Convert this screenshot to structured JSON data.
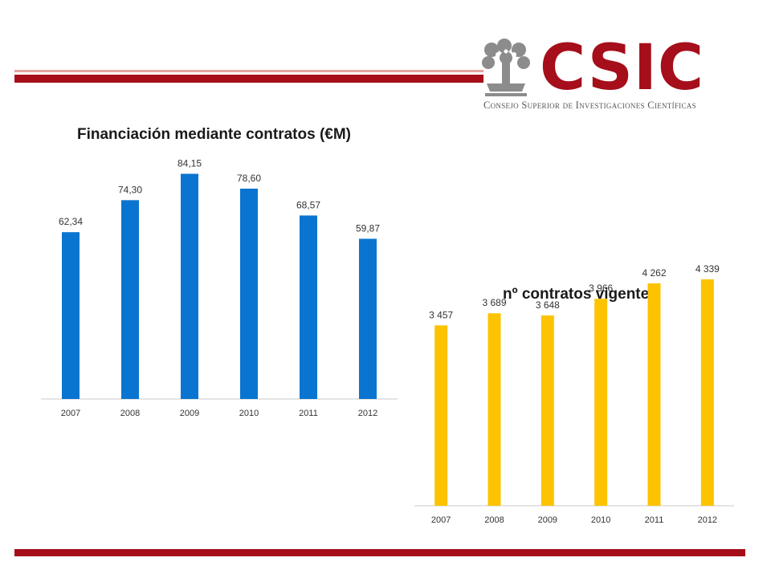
{
  "logo": {
    "name": "CSIC",
    "subtitle": "Consejo Superior de Investigaciones Científicas"
  },
  "colors": {
    "brand_red": "#a50e1a",
    "bar_blue": "#0a75d0",
    "bar_yellow": "#fdc300"
  },
  "chart_data": [
    {
      "type": "bar",
      "title": "Financiación mediante contratos (€M)",
      "categories": [
        "2007",
        "2008",
        "2009",
        "2010",
        "2011",
        "2012"
      ],
      "values": [
        62.34,
        74.3,
        84.15,
        78.6,
        68.57,
        59.87
      ],
      "data_labels": [
        "62,34",
        "74,30",
        "84,15",
        "78,60",
        "68,57",
        "59,87"
      ],
      "ylim": [
        0,
        90
      ],
      "grid": false,
      "legend": "none",
      "color": "#0a75d0"
    },
    {
      "type": "bar",
      "title": "nº contratos vigentes",
      "categories": [
        "2007",
        "2008",
        "2009",
        "2010",
        "2011",
        "2012"
      ],
      "values": [
        3457,
        3689,
        3648,
        3966,
        4262,
        4339
      ],
      "data_labels": [
        "3 457",
        "3 689",
        "3 648",
        "3 966",
        "4 262",
        "4 339"
      ],
      "ylim": [
        0,
        4600
      ],
      "grid": false,
      "legend": "none",
      "color": "#fdc300"
    }
  ]
}
